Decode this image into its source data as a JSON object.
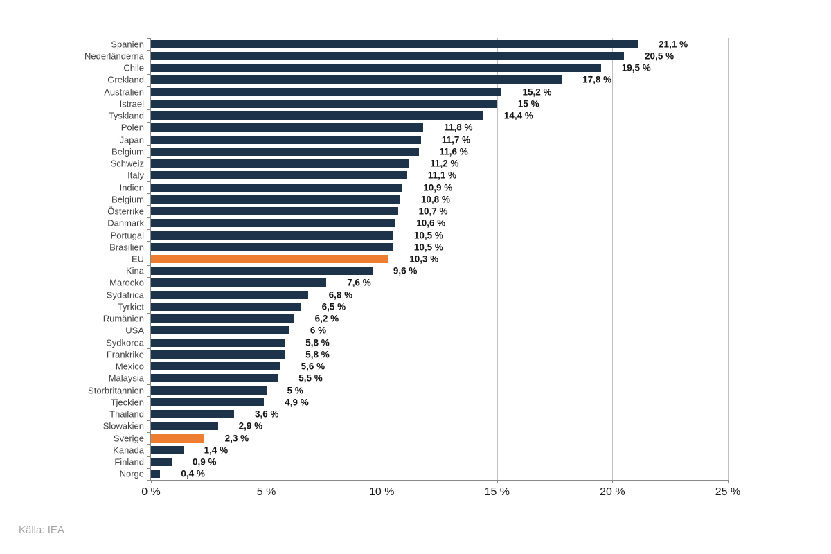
{
  "chart_data": {
    "type": "bar",
    "orientation": "horizontal",
    "title": "",
    "xlabel": "",
    "ylabel": "",
    "xlim": [
      0,
      25
    ],
    "x_tick_values": [
      0,
      5,
      10,
      15,
      20,
      25
    ],
    "x_tick_labels": [
      "0 %",
      "5 %",
      "10 %",
      "15 %",
      "20 %",
      "25 %"
    ],
    "grid": "vertical",
    "legend": "none",
    "bar_color": "#1c3349",
    "highlight_color": "#ed7d31",
    "highlighted_categories": [
      "EU",
      "Sverige"
    ],
    "categories": [
      "Spanien",
      "Nederländerna",
      "Chile",
      "Grekland",
      "Australien",
      "Istrael",
      "Tyskland",
      "Polen",
      "Japan",
      "Belgium",
      "Schweiz",
      "Italy",
      "Indien",
      "Belgium",
      "Österrike",
      "Danmark",
      "Portugal",
      "Brasilien",
      "EU",
      "Kina",
      "Marocko",
      "Sydafrica",
      "Tyrkiet",
      "Rumänien",
      "USA",
      "Sydkorea",
      "Frankrike",
      "Mexico",
      "Malaysia",
      "Storbritannien",
      "Tjeckien",
      "Thailand",
      "Slowakien",
      "Sverige",
      "Kanada",
      "Finland",
      "Norge"
    ],
    "values": [
      21.1,
      20.5,
      19.5,
      17.8,
      15.2,
      15,
      14.4,
      11.8,
      11.7,
      11.6,
      11.2,
      11.1,
      10.9,
      10.8,
      10.7,
      10.6,
      10.5,
      10.5,
      10.3,
      9.6,
      7.6,
      6.8,
      6.5,
      6.2,
      6,
      5.8,
      5.8,
      5.6,
      5.5,
      5,
      4.9,
      3.6,
      2.9,
      2.3,
      1.4,
      0.9,
      0.4
    ],
    "value_labels": [
      "21,1 %",
      "20,5 %",
      "19,5 %",
      "17,8 %",
      "15,2 %",
      "15 %",
      "14,4 %",
      "11,8 %",
      "11,7 %",
      "11,6 %",
      "11,2 %",
      "11,1 %",
      "10,9 %",
      "10,8 %",
      "10,7 %",
      "10,6 %",
      "10,5 %",
      "10,5 %",
      "10,3 %",
      "9,6 %",
      "7,6 %",
      "6,8 %",
      "6,5 %",
      "6,2 %",
      "6 %",
      "5,8 %",
      "5,8 %",
      "5,6 %",
      "5,5 %",
      "5 %",
      "4,9 %",
      "3,6 %",
      "2,9 %",
      "2,3 %",
      "1,4 %",
      "0,9 %",
      "0,4 %"
    ],
    "source_note": "Källa: IEA"
  }
}
